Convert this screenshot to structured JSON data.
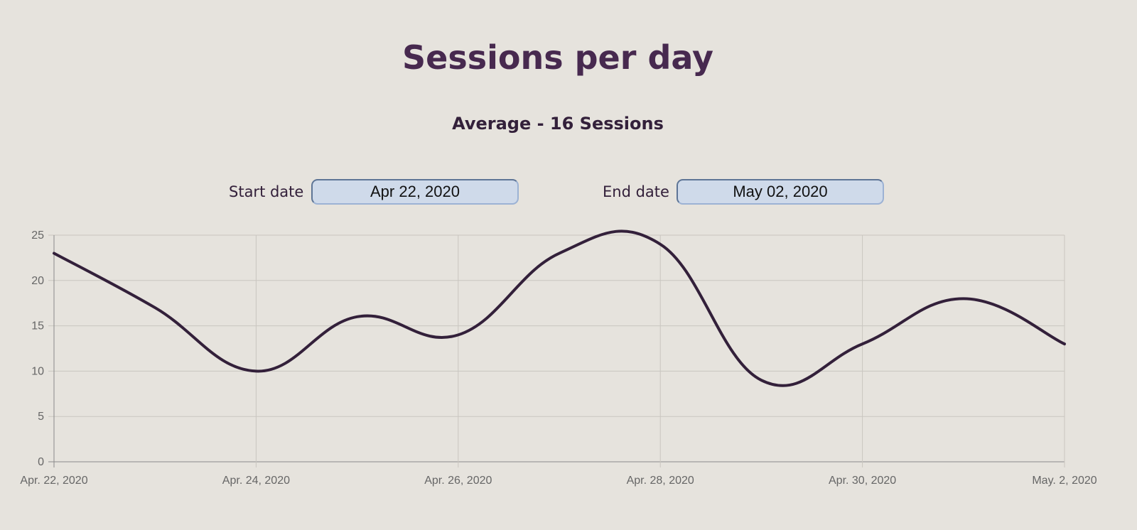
{
  "header": {
    "title": "Sessions per day",
    "subtitle": "Average - 16 Sessions"
  },
  "filters": {
    "start_label": "Start date",
    "start_value": "Apr 22, 2020",
    "end_label": "End date",
    "end_value": "May 02, 2020"
  },
  "chart_data": {
    "type": "line",
    "x": [
      "Apr. 22, 2020",
      "Apr. 23, 2020",
      "Apr. 24, 2020",
      "Apr. 25, 2020",
      "Apr. 26, 2020",
      "Apr. 27, 2020",
      "Apr. 28, 2020",
      "Apr. 29, 2020",
      "Apr. 30, 2020",
      "May. 1, 2020",
      "May. 2, 2020"
    ],
    "values": [
      23,
      17,
      10,
      16,
      14,
      23,
      24,
      9,
      13,
      18,
      13
    ],
    "x_tick_labels": [
      "Apr. 22, 2020",
      "Apr. 24, 2020",
      "Apr. 26, 2020",
      "Apr. 28, 2020",
      "Apr. 30, 2020",
      "May. 2, 2020"
    ],
    "y_ticks": [
      0,
      5,
      10,
      15,
      20,
      25
    ],
    "ylim": [
      0,
      25
    ],
    "grid": true,
    "legend": false,
    "line_color": "#33203a",
    "grid_color": "#c9c6c0",
    "axis_color": "#8a8a8a"
  }
}
